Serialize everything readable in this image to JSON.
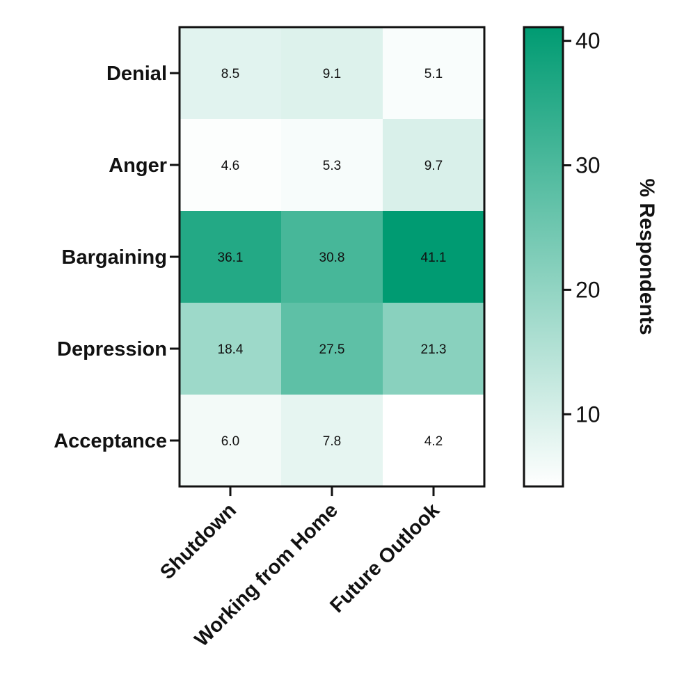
{
  "chart_data": {
    "type": "heatmap",
    "rows": [
      "Denial",
      "Anger",
      "Bargaining",
      "Depression",
      "Acceptance"
    ],
    "columns": [
      "Shutdown",
      "Working from Home",
      "Future Outlook"
    ],
    "values": [
      [
        8.5,
        9.1,
        5.1
      ],
      [
        4.6,
        5.3,
        9.7
      ],
      [
        36.1,
        30.8,
        41.1
      ],
      [
        18.4,
        27.5,
        21.3
      ],
      [
        6.0,
        7.8,
        4.2
      ]
    ],
    "value_labels": [
      [
        "8.5",
        "9.1",
        "5.1"
      ],
      [
        "4.6",
        "5.3",
        "9.7"
      ],
      [
        "36.1",
        "30.8",
        "41.1"
      ],
      [
        "18.4",
        "27.5",
        "21.3"
      ],
      [
        "6.0",
        "7.8",
        "4.2"
      ]
    ],
    "colorbar": {
      "label": "% Respondents",
      "min": 4.2,
      "max": 41.1,
      "ticks": [
        10,
        20,
        30,
        40
      ],
      "tick_labels": [
        "10",
        "20",
        "30",
        "40"
      ],
      "color_low": "#ffffff",
      "color_high": "#009b72"
    },
    "legend_position": "right",
    "grid": false
  }
}
